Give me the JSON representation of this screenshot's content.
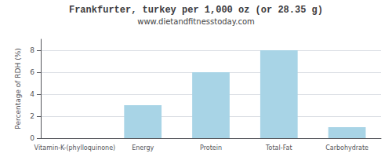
{
  "chart_data": {
    "type": "bar",
    "title": "Frankfurter, turkey per 1,000 oz (or 28.35 g)",
    "subtitle": "www.dietandfitnesstoday.com",
    "categories": [
      "Vitamin-K-(phylloquinone)",
      "Energy",
      "Protein",
      "Total-Fat",
      "Carbohydrate"
    ],
    "values": [
      0,
      3,
      6,
      8,
      1
    ],
    "color": "#a8d4e6",
    "ylabel": "Percentage of RDH (%)",
    "ylim": [
      0,
      9
    ],
    "yticks": [
      0,
      2,
      4,
      6,
      8
    ],
    "grid": true
  }
}
